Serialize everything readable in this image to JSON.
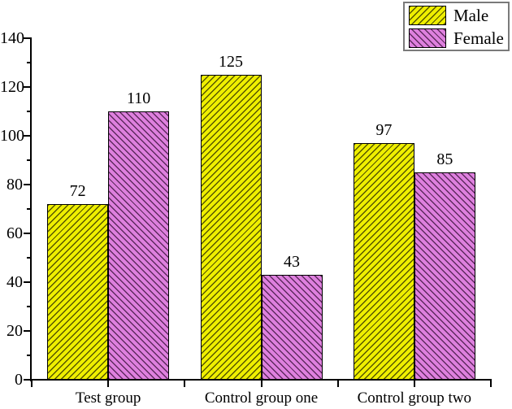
{
  "chart_data": {
    "type": "bar",
    "title": "",
    "xlabel": "",
    "ylabel": "",
    "categories": [
      "Test group",
      "Control group one",
      "Control group two"
    ],
    "series": [
      {
        "name": "Male",
        "values": [
          72,
          125,
          97
        ],
        "fill": "#EFEF00",
        "hatch_color": "#565600",
        "hatch_direction": "/"
      },
      {
        "name": "Female",
        "values": [
          110,
          43,
          85
        ],
        "fill": "#DE80DE",
        "hatch_color": "#5E2A5E",
        "hatch_direction": "\\"
      }
    ],
    "ylim": [
      0,
      140
    ],
    "ytick_step": 20,
    "ytick_labels": [
      "0",
      "20",
      "40",
      "60",
      "80",
      "100",
      "120",
      "140"
    ],
    "minor_ticks": true,
    "grid": false,
    "bar_value_labels": true,
    "legend_position": "top-right",
    "axis_color": "#000000",
    "legend_border_color": "#7a7a7a"
  }
}
